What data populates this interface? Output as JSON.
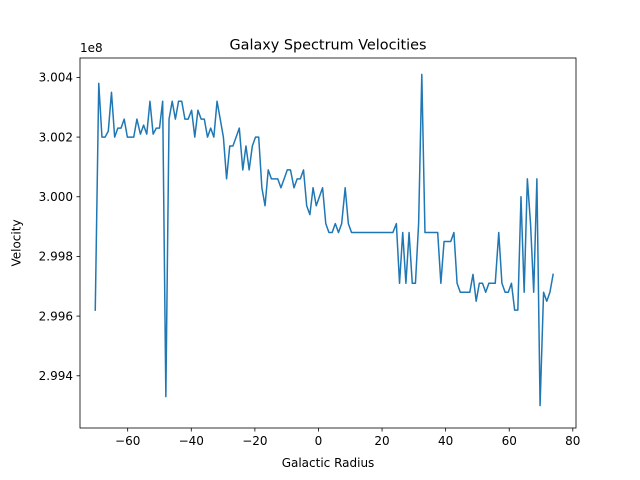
{
  "chart_data": {
    "type": "line",
    "title": "Galaxy Spectrum Velocities",
    "xlabel": "Galactic Radius",
    "ylabel": "Velocity",
    "y_offset_label": "1e8",
    "xlim": [
      -75,
      81
    ],
    "ylim": [
      2.99225,
      3.00465
    ],
    "y_scale_factor": 100000000,
    "x_ticks": [
      -60,
      -40,
      -20,
      0,
      20,
      40,
      60,
      80
    ],
    "x_tick_labels": [
      "−60",
      "−40",
      "−20",
      "0",
      "20",
      "40",
      "60",
      "80"
    ],
    "y_ticks": [
      2.994,
      2.996,
      2.998,
      3.0,
      3.002,
      3.004
    ],
    "y_tick_labels": [
      "2.994",
      "2.996",
      "2.998",
      "3.000",
      "3.002",
      "3.004"
    ],
    "grid": false,
    "legend": "none",
    "line_color": "#1f77b4",
    "series": [
      {
        "x": [
          -70.2,
          -69.1,
          -68.1,
          -67.1,
          -66.1,
          -65.1,
          -64.1,
          -63.1,
          -62.1,
          -61.1,
          -60.1,
          -59.1,
          -58.1,
          -57.1,
          -56.0,
          -55.0,
          -54.0,
          -53.0,
          -52.0,
          -51.0,
          -50.0,
          -49.0,
          -48.0,
          -47.0,
          -46.0,
          -45.0,
          -44.0,
          -43.0,
          -42.0,
          -41.0,
          -39.9,
          -38.9,
          -37.9,
          -36.9,
          -35.9,
          -34.9,
          -33.9,
          -32.9,
          -31.9,
          -30.9,
          -29.9,
          -28.9,
          -27.9,
          -26.9,
          -25.9,
          -24.9,
          -23.8,
          -22.8,
          -21.8,
          -20.8,
          -19.8,
          -18.8,
          -17.8,
          -16.8,
          -15.8,
          -14.8,
          -13.8,
          -12.8,
          -11.8,
          -10.8,
          -9.8,
          -8.8,
          -7.7,
          -6.7,
          -5.7,
          -4.7,
          -3.7,
          -2.7,
          -1.7,
          -0.7,
          0.3,
          1.3,
          2.3,
          3.3,
          4.3,
          5.3,
          6.3,
          7.3,
          8.4,
          9.4,
          10.4,
          11.4,
          12.4,
          13.4,
          14.4,
          15.4,
          16.4,
          17.4,
          18.4,
          19.4,
          20.4,
          21.4,
          22.4,
          23.4,
          24.5,
          25.5,
          26.5,
          27.5,
          28.5,
          29.5,
          30.5,
          31.5,
          32.5,
          33.5,
          34.5,
          35.5,
          36.5,
          37.5,
          38.5,
          39.5,
          40.6,
          41.6,
          42.6,
          43.6,
          44.6,
          45.6,
          46.6,
          47.6,
          48.6,
          49.6,
          50.6,
          51.6,
          52.6,
          53.6,
          54.6,
          55.6,
          56.7,
          57.7,
          58.7,
          59.7,
          60.7,
          61.7,
          62.7,
          63.7,
          64.7,
          65.7,
          66.7,
          67.7,
          68.7,
          69.7,
          70.8,
          71.8,
          72.8,
          73.8
        ],
        "y": [
          2.9962,
          3.0038,
          3.002,
          3.002,
          3.0022,
          3.0035,
          3.002,
          3.0023,
          3.0023,
          3.0026,
          3.002,
          3.002,
          3.002,
          3.0026,
          3.0021,
          3.0024,
          3.0021,
          3.0032,
          3.0021,
          3.0023,
          3.0023,
          3.0032,
          2.9933,
          3.0026,
          3.0032,
          3.0026,
          3.0032,
          3.0032,
          3.0026,
          3.0026,
          3.0029,
          3.002,
          3.0029,
          3.0026,
          3.0026,
          3.002,
          3.0023,
          3.002,
          3.0032,
          3.0026,
          3.002,
          3.0006,
          3.0017,
          3.0017,
          3.002,
          3.0023,
          3.0009,
          3.0017,
          3.0009,
          3.0017,
          3.002,
          3.002,
          3.0003,
          2.9997,
          3.0009,
          3.0006,
          3.0006,
          3.0006,
          3.0003,
          3.0006,
          3.0009,
          3.0009,
          3.0003,
          3.0006,
          3.0006,
          3.0009,
          2.9997,
          2.9994,
          3.0003,
          2.9997,
          3.0,
          3.0003,
          2.9991,
          2.9988,
          2.9988,
          2.9991,
          2.9988,
          2.9991,
          3.0003,
          2.9991,
          2.9988,
          2.9988,
          2.9988,
          2.9988,
          2.9988,
          2.9988,
          2.9988,
          2.9988,
          2.9988,
          2.9988,
          2.9988,
          2.9988,
          2.9988,
          2.9988,
          2.9991,
          2.9971,
          2.9988,
          2.9971,
          2.9988,
          2.9971,
          2.9971,
          2.9991,
          3.0041,
          2.9988,
          2.9988,
          2.9988,
          2.9988,
          2.9988,
          2.9971,
          2.9985,
          2.9985,
          2.9985,
          2.9988,
          2.9971,
          2.9968,
          2.9968,
          2.9968,
          2.9968,
          2.9974,
          2.9965,
          2.9971,
          2.9971,
          2.9968,
          2.9971,
          2.9971,
          2.9971,
          2.9988,
          2.9971,
          2.9968,
          2.9968,
          2.9971,
          2.9962,
          2.9962,
          3.0,
          2.9968,
          3.0006,
          2.9991,
          2.9968,
          3.0006,
          2.993,
          2.9968,
          2.9965,
          2.9968,
          2.9974
        ]
      }
    ]
  }
}
